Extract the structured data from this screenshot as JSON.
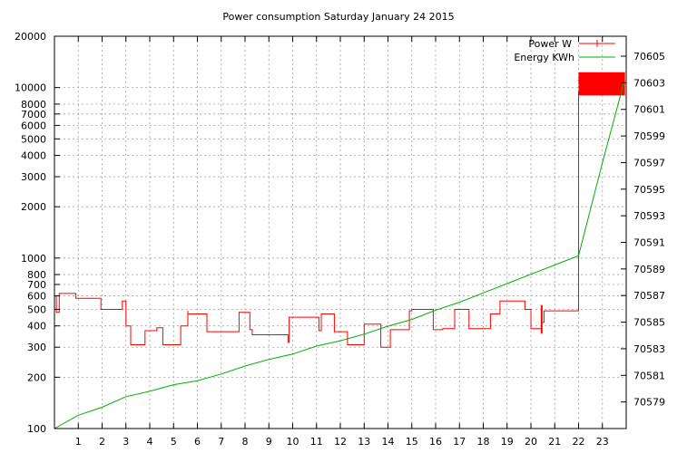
{
  "chart_data": {
    "type": "line",
    "title": "Power consumption Saturday January 24 2015",
    "xlabel": "",
    "ylabel": "",
    "y2label": "",
    "grid": true,
    "legend_position": "top-right",
    "xlim": [
      0,
      24
    ],
    "ylim": [
      100,
      20000
    ],
    "yscale": "log",
    "y2lim": [
      70577,
      70606.5
    ],
    "x_ticks": [
      1,
      2,
      3,
      4,
      5,
      6,
      7,
      8,
      9,
      10,
      11,
      12,
      13,
      14,
      15,
      16,
      17,
      18,
      19,
      20,
      21,
      22,
      23
    ],
    "y_ticks": [
      100,
      200,
      300,
      400,
      500,
      600,
      700,
      800,
      1000,
      2000,
      3000,
      4000,
      5000,
      6000,
      7000,
      8000,
      10000,
      20000
    ],
    "y2_ticks": [
      70579,
      70581,
      70583,
      70585,
      70587,
      70589,
      70591,
      70593,
      70595,
      70597,
      70599,
      70601,
      70603,
      70605
    ],
    "series": [
      {
        "name": "Power W",
        "axis": "y",
        "color": "#ff0000",
        "x": [
          0,
          0,
          0.08,
          0.08,
          0.2,
          0.2,
          0.2,
          0.9,
          0.9,
          1.95,
          1.95,
          2.85,
          2.85,
          3.0,
          3.0,
          3.2,
          3.2,
          3.8,
          3.8,
          4.3,
          4.3,
          4.55,
          4.55,
          5.3,
          5.3,
          5.6,
          5.6,
          5.6,
          5.6,
          6.4,
          6.4,
          7.75,
          7.75,
          8.2,
          8.2,
          8.3,
          8.3,
          9.8,
          9.8,
          9.85,
          9.85,
          11.1,
          11.1,
          11.2,
          11.2,
          11.75,
          11.75,
          12.3,
          12.3,
          13.0,
          13.0,
          13.7,
          13.7,
          14.1,
          14.1,
          14.9,
          14.9,
          15.0,
          15.0,
          15.9,
          15.9,
          16.3,
          16.3,
          16.8,
          16.8,
          17.4,
          17.4,
          18.3,
          18.3,
          18.7,
          18.7,
          19.75,
          19.75,
          20.0,
          20.0,
          20.45,
          20.45,
          20.55,
          20.55,
          21.85,
          21.85,
          22.0,
          22.0,
          22.5,
          22.0,
          23.9
        ],
        "y": [
          480,
          600,
          600,
          480,
          480,
          620,
          620,
          620,
          580,
          580,
          500,
          500,
          560,
          560,
          400,
          400,
          310,
          310,
          375,
          375,
          390,
          390,
          310,
          310,
          400,
          400,
          490,
          490,
          470,
          470,
          370,
          370,
          480,
          480,
          380,
          380,
          355,
          355,
          320,
          320,
          450,
          450,
          375,
          375,
          470,
          470,
          370,
          370,
          310,
          310,
          410,
          410,
          300,
          300,
          380,
          380,
          490,
          490,
          500,
          500,
          380,
          380,
          385,
          385,
          500,
          500,
          385,
          385,
          470,
          470,
          560,
          560,
          500,
          500,
          385,
          385,
          420,
          420,
          490,
          490,
          490,
          490,
          9500,
          9500,
          11000,
          11000
        ],
        "step": true,
        "band": {
          "x_from": 22.0,
          "x_to": 23.95,
          "y_low": 9000,
          "y_high": 12300
        }
      },
      {
        "name": "Energy KWh",
        "axis": "y2",
        "color": "#00b000",
        "x": [
          0,
          1,
          2,
          3,
          4,
          5,
          6,
          7,
          8,
          9,
          10,
          11,
          12,
          13,
          14,
          15,
          16,
          17,
          18,
          19,
          20,
          21,
          22,
          23,
          23.9
        ],
        "y": [
          70577.0,
          70578.0,
          70578.6,
          70579.4,
          70579.8,
          70580.3,
          70580.6,
          70581.1,
          70581.7,
          70582.2,
          70582.6,
          70583.2,
          70583.6,
          70584.1,
          70584.7,
          70585.2,
          70585.9,
          70586.5,
          70587.2,
          70587.9,
          70588.6,
          70589.3,
          70590.0,
          70597.0,
          70603.0
        ]
      }
    ]
  }
}
